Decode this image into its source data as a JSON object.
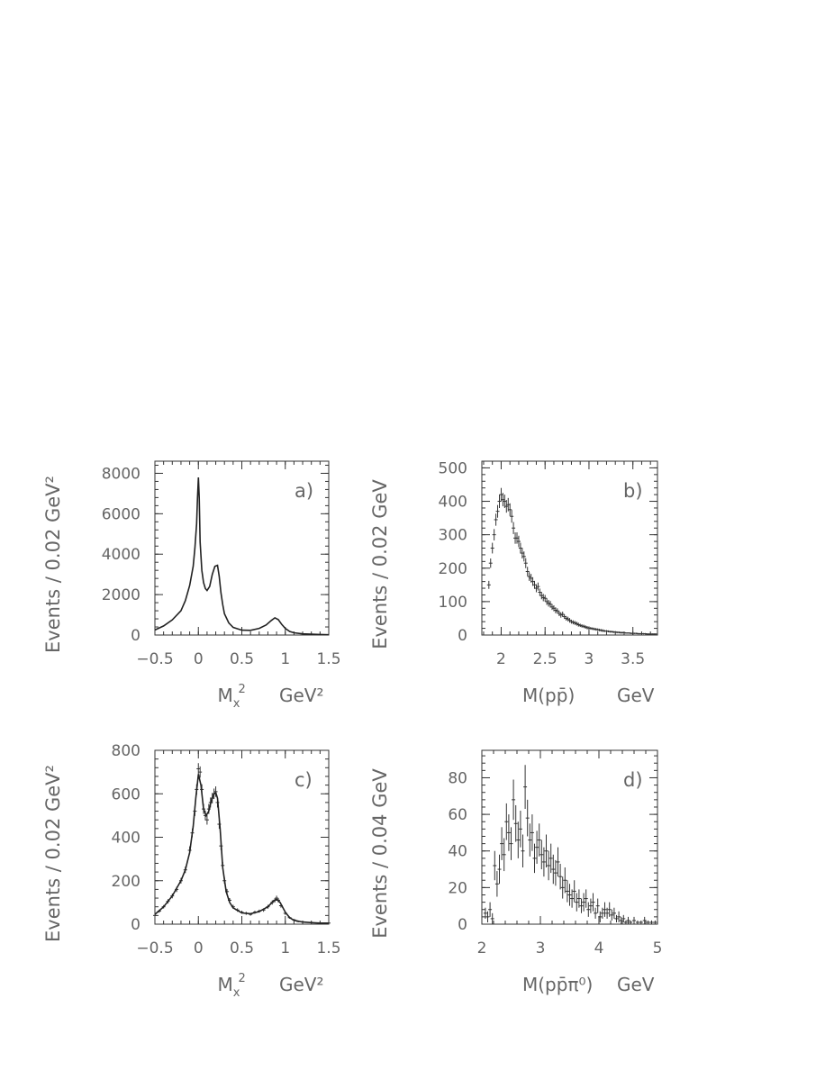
{
  "chart_data": [
    {
      "id": "a",
      "type": "line",
      "panel_label": "a)",
      "ylabel": "Events / 0.02 GeV²",
      "xlabel_main": "M",
      "xlabel_sub": "x",
      "xlabel_sup": "2",
      "xlabel_unit": "GeV²",
      "xlim": [
        -0.5,
        1.5
      ],
      "ylim": [
        0,
        8600
      ],
      "xticks": [
        -0.5,
        0,
        0.5,
        1,
        1.5
      ],
      "xtick_labels": [
        "−0.5",
        "0",
        "0.5",
        "1",
        "1.5"
      ],
      "yticks": [
        0,
        2000,
        4000,
        6000,
        8000
      ],
      "ytick_labels": [
        "0",
        "2000",
        "4000",
        "6000",
        "8000"
      ],
      "series": [
        {
          "style": "line",
          "x": [
            -0.5,
            -0.4,
            -0.3,
            -0.2,
            -0.15,
            -0.1,
            -0.06,
            -0.04,
            -0.02,
            -0.01,
            0,
            0.01,
            0.02,
            0.04,
            0.06,
            0.08,
            0.1,
            0.13,
            0.16,
            0.19,
            0.22,
            0.24,
            0.26,
            0.28,
            0.3,
            0.35,
            0.4,
            0.5,
            0.6,
            0.7,
            0.78,
            0.84,
            0.88,
            0.92,
            0.96,
            1.0,
            1.05,
            1.1,
            1.2,
            1.3,
            1.4,
            1.5
          ],
          "y": [
            250,
            450,
            750,
            1200,
            1700,
            2450,
            3400,
            4300,
            5500,
            6800,
            7800,
            6800,
            4600,
            3200,
            2600,
            2300,
            2200,
            2400,
            3000,
            3400,
            3450,
            2900,
            2100,
            1500,
            1050,
            600,
            380,
            240,
            230,
            330,
            500,
            720,
            850,
            760,
            520,
            330,
            180,
            110,
            60,
            40,
            25,
            15
          ]
        }
      ]
    },
    {
      "id": "b",
      "type": "scatter",
      "panel_label": "b)",
      "ylabel": "Events / 0.02 GeV",
      "xlabel_main": "M(pp̄)",
      "xlabel_unit": "GeV",
      "xlim": [
        1.78,
        3.78
      ],
      "ylim": [
        0,
        520
      ],
      "xticks": [
        2,
        2.5,
        3,
        3.5
      ],
      "xtick_labels": [
        "2",
        "2.5",
        "3",
        "3.5"
      ],
      "yticks": [
        0,
        100,
        200,
        300,
        400,
        500
      ],
      "ytick_labels": [
        "0",
        "100",
        "200",
        "300",
        "400",
        "500"
      ],
      "series": [
        {
          "style": "errorbars",
          "x": [
            1.86,
            1.88,
            1.9,
            1.92,
            1.94,
            1.96,
            1.98,
            2.0,
            2.02,
            2.04,
            2.06,
            2.08,
            2.1,
            2.12,
            2.14,
            2.16,
            2.18,
            2.2,
            2.22,
            2.24,
            2.26,
            2.28,
            2.3,
            2.32,
            2.34,
            2.36,
            2.38,
            2.4,
            2.42,
            2.44,
            2.46,
            2.48,
            2.5,
            2.52,
            2.54,
            2.56,
            2.58,
            2.6,
            2.62,
            2.64,
            2.66,
            2.68,
            2.7,
            2.72,
            2.74,
            2.76,
            2.78,
            2.8,
            2.82,
            2.84,
            2.86,
            2.88,
            2.9,
            2.92,
            2.94,
            2.96,
            2.98,
            3.0,
            3.02,
            3.04,
            3.06,
            3.08,
            3.1,
            3.12,
            3.14,
            3.16,
            3.18,
            3.2,
            3.22,
            3.24,
            3.26,
            3.28,
            3.3,
            3.32,
            3.34,
            3.36,
            3.38,
            3.4,
            3.42,
            3.44,
            3.46,
            3.48,
            3.5,
            3.52,
            3.54,
            3.56,
            3.58,
            3.6,
            3.62,
            3.64,
            3.66,
            3.68,
            3.7,
            3.72,
            3.74,
            3.76
          ],
          "y": [
            150,
            215,
            260,
            300,
            345,
            370,
            400,
            420,
            405,
            400,
            385,
            390,
            375,
            355,
            320,
            290,
            290,
            280,
            260,
            245,
            235,
            215,
            190,
            175,
            170,
            160,
            150,
            140,
            145,
            128,
            118,
            112,
            110,
            100,
            95,
            92,
            84,
            80,
            74,
            72,
            65,
            60,
            62,
            55,
            50,
            48,
            44,
            40,
            38,
            36,
            34,
            31,
            29,
            27,
            26,
            24,
            22,
            21,
            20,
            19,
            18,
            17,
            16,
            15,
            14,
            13,
            12,
            12,
            11,
            10,
            10,
            9,
            9,
            8,
            8,
            7,
            7,
            7,
            6,
            6,
            6,
            5,
            5,
            5,
            5,
            4,
            4,
            4,
            4,
            4,
            3,
            3,
            3,
            3,
            3,
            3
          ],
          "err": [
            12,
            14,
            16,
            17,
            18,
            19,
            20,
            20,
            20,
            20,
            19,
            20,
            19,
            19,
            18,
            17,
            17,
            17,
            16,
            16,
            15,
            15,
            14,
            13,
            13,
            13,
            12,
            12,
            12,
            11,
            11,
            11,
            10,
            10,
            10,
            10,
            9,
            9,
            9,
            8,
            8,
            8,
            8,
            7,
            7,
            7,
            7,
            6,
            6,
            6,
            6,
            6,
            5,
            5,
            5,
            5,
            5,
            5,
            4,
            4,
            4,
            4,
            4,
            4,
            4,
            4,
            3,
            3,
            3,
            3,
            3,
            3,
            3,
            3,
            3,
            3,
            3,
            3,
            2,
            2,
            2,
            2,
            2,
            2,
            2,
            2,
            2,
            2,
            2,
            2,
            2,
            2,
            2,
            2,
            2,
            2
          ]
        }
      ]
    },
    {
      "id": "c",
      "type": "line",
      "panel_label": "c)",
      "ylabel": "Events / 0.02 GeV²",
      "xlabel_main": "M",
      "xlabel_sub": "x",
      "xlabel_sup": "2",
      "xlabel_unit": "GeV²",
      "xlim": [
        -0.5,
        1.5
      ],
      "ylim": [
        0,
        800
      ],
      "xticks": [
        -0.5,
        0,
        0.5,
        1,
        1.5
      ],
      "xtick_labels": [
        "−0.5",
        "0",
        "0.5",
        "1",
        "1.5"
      ],
      "yticks": [
        0,
        200,
        400,
        600,
        800
      ],
      "ytick_labels": [
        "0",
        "200",
        "400",
        "600",
        "800"
      ],
      "series": [
        {
          "style": "errorbars",
          "x": [
            -0.5,
            -0.45,
            -0.4,
            -0.35,
            -0.3,
            -0.25,
            -0.2,
            -0.15,
            -0.1,
            -0.07,
            -0.04,
            -0.02,
            0,
            0.02,
            0.04,
            0.06,
            0.08,
            0.1,
            0.12,
            0.14,
            0.16,
            0.18,
            0.2,
            0.22,
            0.24,
            0.26,
            0.28,
            0.3,
            0.33,
            0.36,
            0.4,
            0.45,
            0.5,
            0.55,
            0.6,
            0.65,
            0.7,
            0.75,
            0.8,
            0.85,
            0.88,
            0.9,
            0.92,
            0.95,
            1.0,
            1.05,
            1.1,
            1.15,
            1.2,
            1.3,
            1.4,
            1.5
          ],
          "y": [
            40,
            60,
            80,
            105,
            130,
            160,
            200,
            250,
            340,
            420,
            520,
            620,
            715,
            700,
            620,
            530,
            500,
            480,
            530,
            560,
            580,
            600,
            610,
            560,
            460,
            360,
            270,
            200,
            150,
            110,
            80,
            65,
            55,
            50,
            45,
            55,
            60,
            65,
            80,
            100,
            110,
            120,
            110,
            85,
            50,
            30,
            20,
            12,
            10,
            8,
            6,
            5
          ],
          "err": [
            6,
            7,
            8,
            10,
            11,
            12,
            13,
            15,
            18,
            20,
            22,
            24,
            26,
            26,
            24,
            23,
            22,
            22,
            23,
            23,
            24,
            24,
            24,
            23,
            21,
            19,
            16,
            14,
            12,
            10,
            9,
            8,
            7,
            7,
            6,
            7,
            7,
            8,
            9,
            10,
            10,
            11,
            10,
            9,
            7,
            5,
            4,
            3,
            3,
            3,
            2,
            2
          ]
        },
        {
          "style": "line",
          "x": [
            -0.5,
            -0.4,
            -0.3,
            -0.2,
            -0.15,
            -0.1,
            -0.06,
            -0.03,
            0,
            0.03,
            0.06,
            0.09,
            0.12,
            0.15,
            0.18,
            0.2,
            0.22,
            0.25,
            0.28,
            0.32,
            0.36,
            0.4,
            0.5,
            0.6,
            0.7,
            0.8,
            0.86,
            0.9,
            0.94,
            1.0,
            1.05,
            1.1,
            1.2,
            1.3,
            1.4,
            1.5
          ],
          "y": [
            45,
            80,
            130,
            200,
            250,
            330,
            450,
            580,
            690,
            640,
            530,
            500,
            520,
            570,
            600,
            605,
            580,
            440,
            260,
            150,
            100,
            75,
            52,
            48,
            58,
            80,
            105,
            115,
            100,
            55,
            30,
            18,
            10,
            7,
            5,
            5
          ]
        }
      ]
    },
    {
      "id": "d",
      "type": "scatter",
      "panel_label": "d)",
      "ylabel": "Events / 0.04 GeV",
      "xlabel_main": "M(pp̄π⁰)",
      "xlabel_unit": "GeV",
      "xlim": [
        2,
        5
      ],
      "ylim": [
        0,
        95
      ],
      "xticks": [
        2,
        3,
        4,
        5
      ],
      "xtick_labels": [
        "2",
        "3",
        "4",
        "5"
      ],
      "yticks": [
        0,
        20,
        40,
        60,
        80
      ],
      "ytick_labels": [
        "0",
        "20",
        "40",
        "60",
        "80"
      ],
      "series": [
        {
          "style": "errorbars",
          "x": [
            2.06,
            2.1,
            2.14,
            2.18,
            2.22,
            2.26,
            2.3,
            2.34,
            2.38,
            2.42,
            2.46,
            2.5,
            2.54,
            2.58,
            2.62,
            2.66,
            2.7,
            2.74,
            2.78,
            2.82,
            2.86,
            2.9,
            2.94,
            2.98,
            3.02,
            3.06,
            3.1,
            3.14,
            3.18,
            3.22,
            3.26,
            3.3,
            3.34,
            3.38,
            3.42,
            3.46,
            3.5,
            3.54,
            3.58,
            3.62,
            3.66,
            3.7,
            3.74,
            3.78,
            3.82,
            3.86,
            3.9,
            3.94,
            3.98,
            4.02,
            4.06,
            4.1,
            4.14,
            4.18,
            4.22,
            4.26,
            4.3,
            4.34,
            4.38,
            4.42,
            4.46,
            4.5,
            4.54,
            4.6,
            4.66,
            4.72,
            4.78,
            4.84,
            4.9,
            4.96
          ],
          "y": [
            6,
            4,
            8,
            3,
            32,
            22,
            30,
            44,
            38,
            56,
            50,
            44,
            68,
            55,
            46,
            52,
            40,
            75,
            58,
            46,
            50,
            36,
            42,
            46,
            38,
            34,
            40,
            32,
            36,
            30,
            28,
            34,
            26,
            20,
            24,
            18,
            16,
            14,
            18,
            12,
            14,
            10,
            12,
            14,
            8,
            10,
            12,
            6,
            10,
            4,
            6,
            8,
            6,
            8,
            5,
            6,
            3,
            4,
            2,
            3,
            1,
            2,
            1,
            2,
            1,
            1,
            2,
            1,
            1,
            1
          ],
          "err": [
            3,
            3,
            4,
            3,
            8,
            7,
            8,
            9,
            9,
            10,
            10,
            9,
            11,
            10,
            10,
            10,
            9,
            12,
            10,
            9,
            10,
            8,
            9,
            9,
            8,
            8,
            9,
            8,
            8,
            8,
            7,
            8,
            7,
            6,
            7,
            6,
            6,
            5,
            6,
            5,
            5,
            4,
            5,
            5,
            4,
            4,
            5,
            3,
            4,
            3,
            3,
            4,
            3,
            4,
            3,
            3,
            2,
            3,
            2,
            2,
            1,
            2,
            1,
            2,
            1,
            1,
            2,
            1,
            1,
            1
          ]
        }
      ]
    }
  ]
}
